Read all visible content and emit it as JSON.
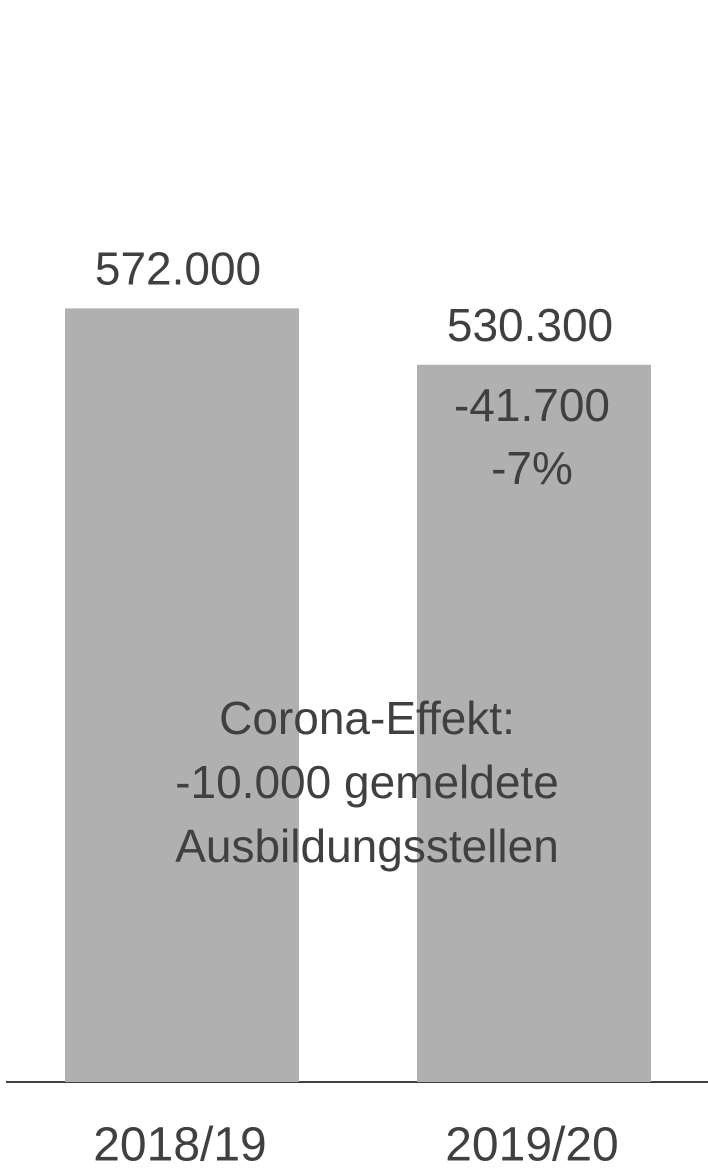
{
  "chart_data": {
    "type": "bar",
    "categories": [
      "2018/19",
      "2019/20"
    ],
    "values": [
      572000,
      530300
    ],
    "value_labels": [
      "572.000",
      "530.300"
    ],
    "color": "#b0b0b0",
    "ylim": [
      0,
      800000
    ],
    "annotations": [
      "-41.700",
      "-7%"
    ],
    "note_lines": [
      "Corona-Effekt:",
      "-10.000 gemeldete",
      "Ausbildungsstellen"
    ]
  }
}
